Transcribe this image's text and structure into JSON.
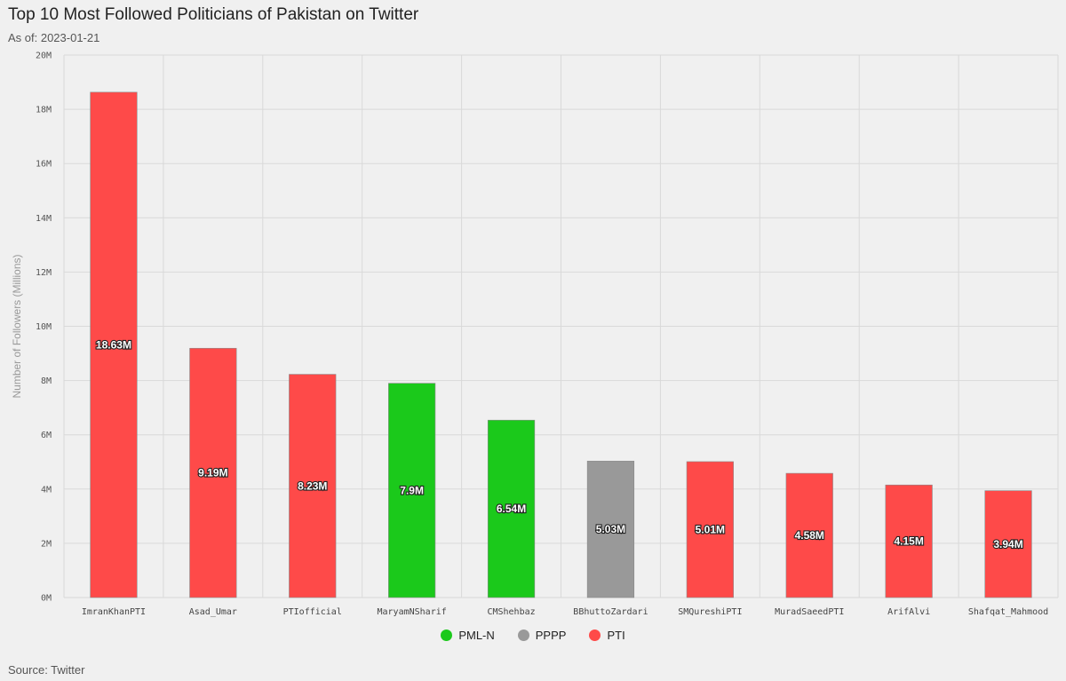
{
  "chart_data": {
    "type": "bar",
    "title": "Top 10 Most Followed Politicians of Pakistan on Twitter",
    "subtitle": "As of: 2023-01-21",
    "source": "Source: Twitter",
    "ylabel": "Number of Followers (Millions)",
    "xlabel": "",
    "ylim": [
      0,
      20
    ],
    "yticks": [
      "0M",
      "2M",
      "4M",
      "6M",
      "8M",
      "10M",
      "12M",
      "14M",
      "16M",
      "18M",
      "20M"
    ],
    "grid": true,
    "legend_position": "bottom",
    "categories": [
      "ImranKhanPTI",
      "Asad_Umar",
      "PTIofficial",
      "MaryamNSharif",
      "CMShehbaz",
      "BBhuttoZardari",
      "SMQureshiPTI",
      "MuradSaeedPTI",
      "ArifAlvi",
      "Shafqat_Mahmood"
    ],
    "values": [
      18.63,
      9.19,
      8.23,
      7.9,
      6.54,
      5.03,
      5.01,
      4.58,
      4.15,
      3.94
    ],
    "data_labels": [
      "18.63M",
      "9.19M",
      "8.23M",
      "7.9M",
      "6.54M",
      "5.03M",
      "5.01M",
      "4.58M",
      "4.15M",
      "3.94M"
    ],
    "party": [
      "PTI",
      "PTI",
      "PTI",
      "PML-N",
      "PML-N",
      "PPPP",
      "PTI",
      "PTI",
      "PTI",
      "PTI"
    ],
    "legend": [
      {
        "name": "PML-N",
        "color": "#1bc91b"
      },
      {
        "name": "PPPP",
        "color": "#999999"
      },
      {
        "name": "PTI",
        "color": "#fe4a49"
      }
    ]
  }
}
